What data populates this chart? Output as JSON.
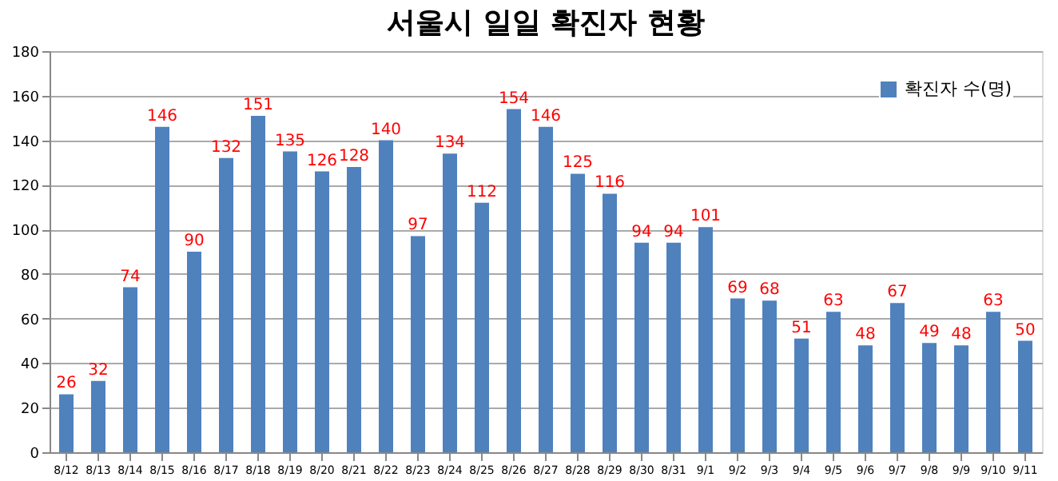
{
  "chart_data": {
    "type": "bar",
    "title": "서울시 일일 확진자 현황",
    "categories": [
      "8/12",
      "8/13",
      "8/14",
      "8/15",
      "8/16",
      "8/17",
      "8/18",
      "8/19",
      "8/20",
      "8/21",
      "8/22",
      "8/23",
      "8/24",
      "8/25",
      "8/26",
      "8/27",
      "8/28",
      "8/29",
      "8/30",
      "8/31",
      "9/1",
      "9/2",
      "9/3",
      "9/4",
      "9/5",
      "9/6",
      "9/7",
      "9/8",
      "9/9",
      "9/10",
      "9/11"
    ],
    "series": [
      {
        "name": "확진자 수(명)",
        "color": "#4f81bd",
        "values": [
          26,
          32,
          74,
          146,
          90,
          132,
          151,
          135,
          126,
          128,
          140,
          97,
          134,
          112,
          154,
          146,
          125,
          116,
          94,
          94,
          101,
          69,
          68,
          51,
          63,
          48,
          67,
          49,
          48,
          63,
          50
        ]
      }
    ],
    "ylim": [
      0,
      180
    ],
    "yticks": [
      0,
      20,
      40,
      60,
      80,
      100,
      120,
      140,
      160,
      180
    ],
    "grid": "y",
    "legend": "top right",
    "data_labels": true
  }
}
